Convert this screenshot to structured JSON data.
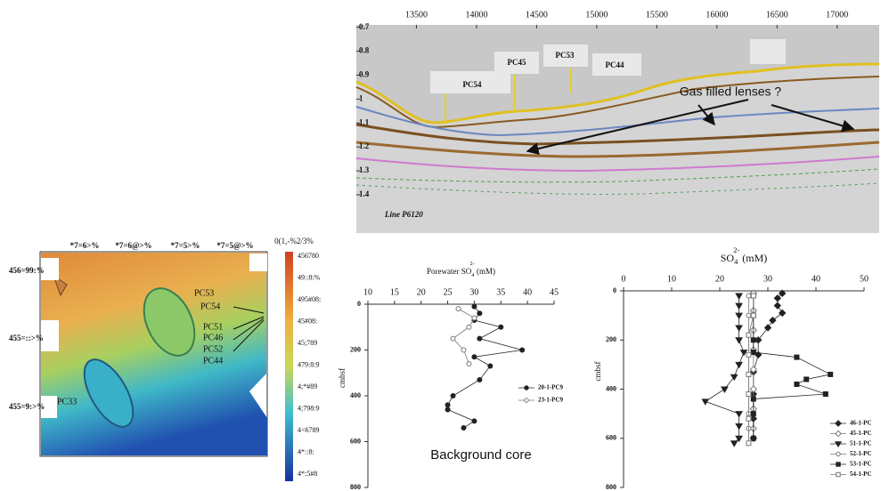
{
  "chart_data": [
    {
      "type": "seismic",
      "xlim": [
        13000,
        17350
      ],
      "ylim": [
        0.69,
        1.56
      ],
      "xticks": [
        13500,
        14000,
        14500,
        15000,
        15500,
        16000,
        16500,
        17000
      ],
      "yticks": [
        0.7,
        0.8,
        0.9,
        1.0,
        1.1,
        1.2,
        1.3,
        1.4
      ],
      "cores": [
        "PC54",
        "PC45",
        "PC53",
        "PC44"
      ],
      "annotation": "Gas filled lenses ?",
      "line_label": "Line P6120"
    },
    {
      "type": "scatter",
      "title": {
        "text": "Porewater SO",
        "sub": "4",
        "sup": "2-",
        "unit": " (mM)"
      },
      "ylabel": "cmbsf",
      "annotation": "Background core",
      "xlim": [
        10,
        45
      ],
      "xticks": [
        10,
        15,
        20,
        25,
        30,
        35,
        40,
        45
      ],
      "ylim": [
        0,
        800
      ],
      "yticks": [
        0,
        200,
        400,
        600,
        800
      ],
      "series": [
        {
          "name": "20-1-PC9",
          "marker": "circle",
          "filled": true,
          "color": "#222",
          "x": [
            30,
            31,
            30,
            35,
            31,
            39,
            30,
            33,
            31,
            26,
            25,
            25,
            30,
            28
          ],
          "y": [
            10,
            40,
            70,
            100,
            150,
            200,
            230,
            270,
            330,
            400,
            440,
            460,
            510,
            540
          ]
        },
        {
          "name": "23-1-PC9",
          "marker": "circle",
          "filled": false,
          "color": "#777",
          "x": [
            27,
            30,
            29,
            26,
            28,
            29
          ],
          "y": [
            20,
            60,
            100,
            150,
            200,
            260
          ]
        }
      ]
    },
    {
      "type": "scatter",
      "title": {
        "text": "SO",
        "sub": "4",
        "sup": "2-",
        "unit": " (mM)"
      },
      "ylabel": "cmbsf",
      "xlim": [
        0,
        50
      ],
      "xticks": [
        0,
        10,
        20,
        30,
        40,
        50
      ],
      "ylim": [
        0,
        800
      ],
      "yticks": [
        0,
        200,
        400,
        600,
        800
      ],
      "series": [
        {
          "name": "46-1-PC",
          "marker": "diamond",
          "filled": true,
          "color": "#222",
          "x": [
            33,
            32,
            32,
            33,
            31,
            30,
            28,
            28,
            27,
            27,
            27,
            27
          ],
          "y": [
            10,
            30,
            60,
            90,
            120,
            150,
            200,
            260,
            330,
            420,
            520,
            600
          ]
        },
        {
          "name": "45-1-PC",
          "marker": "diamond",
          "filled": false,
          "color": "#777",
          "x": [
            27,
            27,
            27,
            27,
            27,
            27,
            27,
            27
          ],
          "y": [
            10,
            80,
            160,
            240,
            320,
            400,
            480,
            560
          ]
        },
        {
          "name": "51-1-PC",
          "marker": "triangle",
          "filled": true,
          "color": "#222",
          "x": [
            24,
            24,
            24,
            24,
            24,
            25,
            24,
            23,
            21,
            17,
            24,
            24,
            24,
            23
          ],
          "y": [
            20,
            60,
            100,
            150,
            200,
            250,
            300,
            350,
            400,
            450,
            500,
            550,
            600,
            620
          ]
        },
        {
          "name": "52-1-PC",
          "marker": "circle",
          "filled": false,
          "color": "#777",
          "x": [
            26,
            26,
            26,
            26,
            26,
            26,
            26,
            26,
            26
          ],
          "y": [
            20,
            100,
            180,
            260,
            340,
            420,
            500,
            560,
            620
          ]
        },
        {
          "name": "53-1-PC",
          "marker": "square",
          "filled": true,
          "color": "#222",
          "x": [
            27,
            27,
            27,
            27,
            36,
            43,
            38,
            36,
            42,
            27,
            27,
            27
          ],
          "y": [
            20,
            100,
            200,
            250,
            270,
            340,
            360,
            380,
            420,
            440,
            500,
            600
          ]
        },
        {
          "name": "54-1-PC",
          "marker": "square",
          "filled": false,
          "color": "#777",
          "x": [
            27,
            27,
            26,
            26,
            26,
            26,
            26,
            26
          ],
          "y": [
            20,
            100,
            180,
            260,
            340,
            420,
            520,
            620
          ]
        }
      ]
    }
  ],
  "map": {
    "top_labels": [
      "*7=6>%",
      "*7=6@>%",
      "*7=5>%",
      "*7=5@>%"
    ],
    "left_labels": [
      "456=99:%",
      "455=::>%",
      "455=9:>%"
    ],
    "cores": [
      "PC53",
      "PC54",
      "PC51",
      "PC46",
      "PC52",
      "PC44",
      "PC33"
    ],
    "colorbar_title": "0(1,-%2/3%",
    "colorbar_labels": [
      "456780",
      "49::8:%",
      "495#08:",
      "45#08:",
      "45;789",
      "479:8:9",
      "4;*#89",
      "4;798:9",
      "4<6789",
      "4*::8:",
      "4*:5#8"
    ]
  }
}
